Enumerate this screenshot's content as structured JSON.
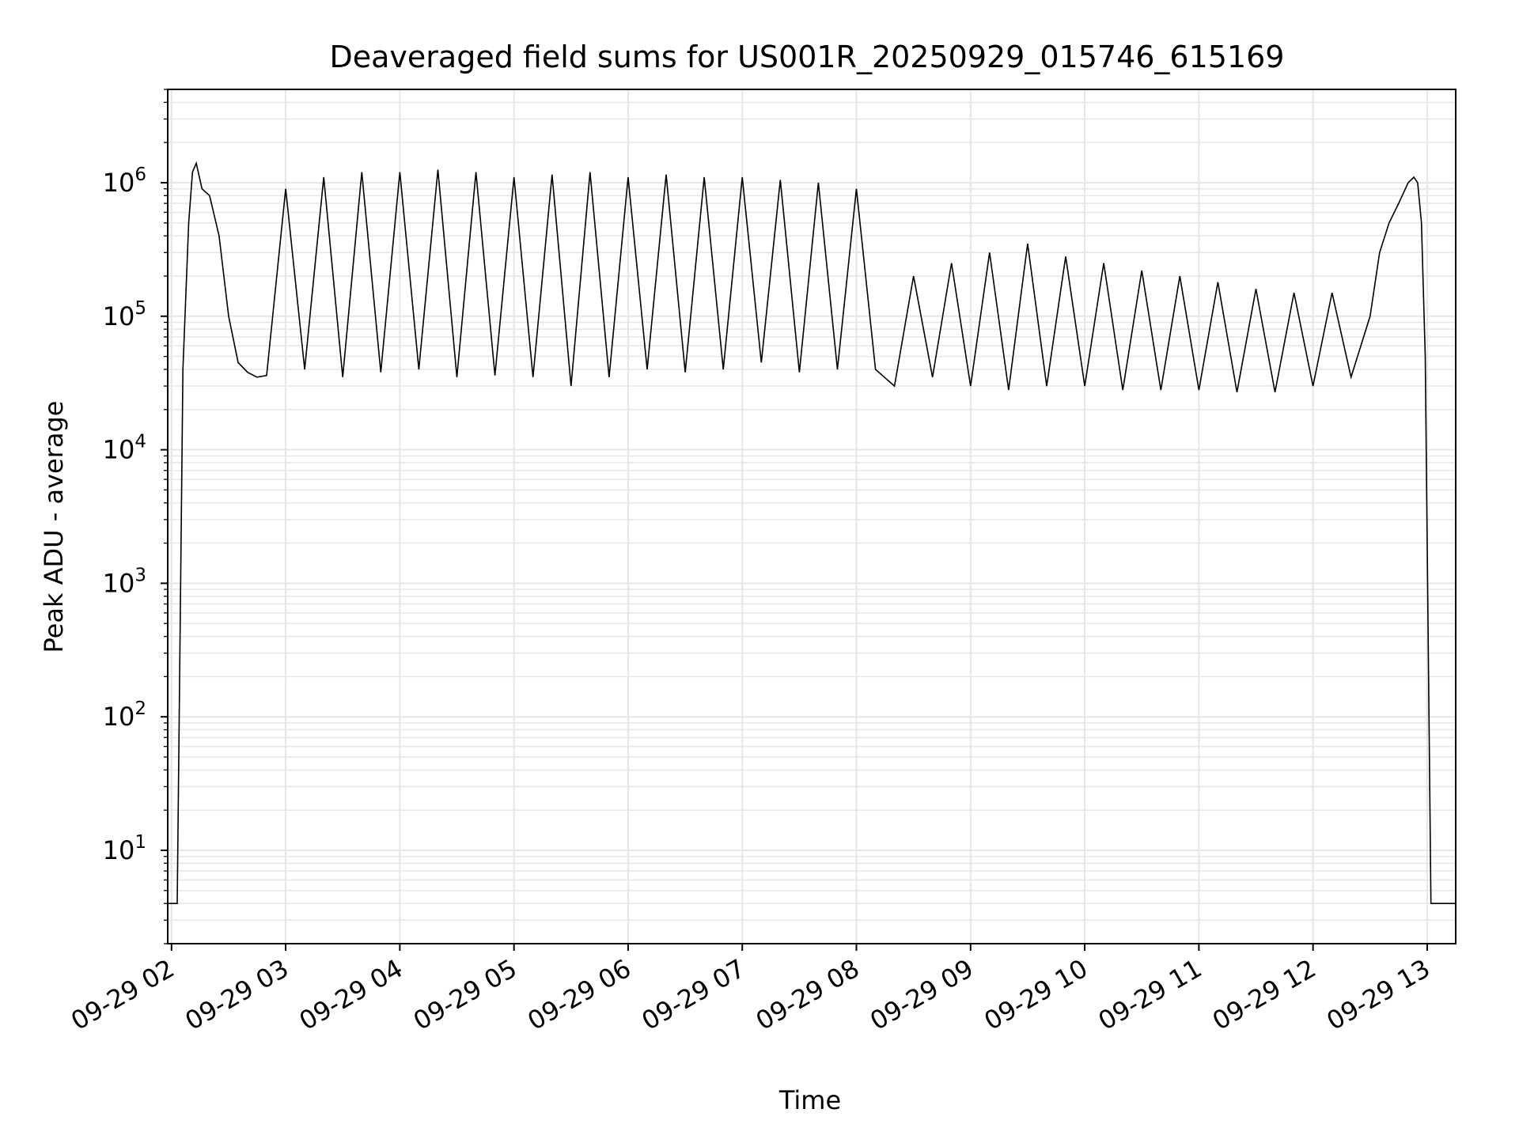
{
  "chart_data": {
    "type": "line",
    "title": "Deaveraged field sums for US001R_20250929_015746_615169",
    "xlabel": "Time",
    "ylabel": "Peak ADU - average",
    "yscale": "log",
    "ylim": [
      2,
      5000000
    ],
    "xlim": [
      "2025-09-29 01:58",
      "2025-09-29 13:15"
    ],
    "grid": true,
    "grid_color": "#e6e6e6",
    "line_color": "#000000",
    "x_ticks": [
      {
        "value": "2025-09-29 02:00",
        "label": "09-29 02"
      },
      {
        "value": "2025-09-29 03:00",
        "label": "09-29 03"
      },
      {
        "value": "2025-09-29 04:00",
        "label": "09-29 04"
      },
      {
        "value": "2025-09-29 05:00",
        "label": "09-29 05"
      },
      {
        "value": "2025-09-29 06:00",
        "label": "09-29 06"
      },
      {
        "value": "2025-09-29 07:00",
        "label": "09-29 07"
      },
      {
        "value": "2025-09-29 08:00",
        "label": "09-29 08"
      },
      {
        "value": "2025-09-29 09:00",
        "label": "09-29 09"
      },
      {
        "value": "2025-09-29 10:00",
        "label": "09-29 10"
      },
      {
        "value": "2025-09-29 11:00",
        "label": "09-29 11"
      },
      {
        "value": "2025-09-29 12:00",
        "label": "09-29 12"
      },
      {
        "value": "2025-09-29 13:00",
        "label": "09-29 13"
      }
    ],
    "y_ticks": [
      {
        "value": 10,
        "base": "10",
        "exp": "1"
      },
      {
        "value": 100,
        "base": "10",
        "exp": "2"
      },
      {
        "value": 1000,
        "base": "10",
        "exp": "3"
      },
      {
        "value": 10000,
        "base": "10",
        "exp": "4"
      },
      {
        "value": 100000,
        "base": "10",
        "exp": "5"
      },
      {
        "value": 1000000,
        "base": "10",
        "exp": "6"
      }
    ],
    "series": [
      {
        "x": [
          "2025-09-29 01:58",
          "2025-09-29 02:03",
          "2025-09-29 02:06",
          "2025-09-29 02:09",
          "2025-09-29 02:11",
          "2025-09-29 02:13",
          "2025-09-29 02:16",
          "2025-09-29 02:20",
          "2025-09-29 02:25",
          "2025-09-29 02:30",
          "2025-09-29 02:35",
          "2025-09-29 02:40",
          "2025-09-29 02:45",
          "2025-09-29 02:50",
          "2025-09-29 03:00",
          "2025-09-29 03:10",
          "2025-09-29 03:20",
          "2025-09-29 03:30",
          "2025-09-29 03:40",
          "2025-09-29 03:50",
          "2025-09-29 04:00",
          "2025-09-29 04:10",
          "2025-09-29 04:20",
          "2025-09-29 04:30",
          "2025-09-29 04:40",
          "2025-09-29 04:50",
          "2025-09-29 05:00",
          "2025-09-29 05:10",
          "2025-09-29 05:20",
          "2025-09-29 05:30",
          "2025-09-29 05:40",
          "2025-09-29 05:50",
          "2025-09-29 06:00",
          "2025-09-29 06:10",
          "2025-09-29 06:20",
          "2025-09-29 06:30",
          "2025-09-29 06:40",
          "2025-09-29 06:50",
          "2025-09-29 07:00",
          "2025-09-29 07:10",
          "2025-09-29 07:20",
          "2025-09-29 07:30",
          "2025-09-29 07:40",
          "2025-09-29 07:50",
          "2025-09-29 08:00",
          "2025-09-29 08:10",
          "2025-09-29 08:20",
          "2025-09-29 08:30",
          "2025-09-29 08:40",
          "2025-09-29 08:50",
          "2025-09-29 09:00",
          "2025-09-29 09:10",
          "2025-09-29 09:20",
          "2025-09-29 09:30",
          "2025-09-29 09:40",
          "2025-09-29 09:50",
          "2025-09-29 10:00",
          "2025-09-29 10:10",
          "2025-09-29 10:20",
          "2025-09-29 10:30",
          "2025-09-29 10:40",
          "2025-09-29 10:50",
          "2025-09-29 11:00",
          "2025-09-29 11:10",
          "2025-09-29 11:20",
          "2025-09-29 11:30",
          "2025-09-29 11:40",
          "2025-09-29 11:50",
          "2025-09-29 12:00",
          "2025-09-29 12:10",
          "2025-09-29 12:20",
          "2025-09-29 12:30",
          "2025-09-29 12:35",
          "2025-09-29 12:40",
          "2025-09-29 12:45",
          "2025-09-29 12:50",
          "2025-09-29 12:53",
          "2025-09-29 12:55",
          "2025-09-29 12:57",
          "2025-09-29 12:59",
          "2025-09-29 13:02",
          "2025-09-29 13:05",
          "2025-09-29 13:10",
          "2025-09-29 13:15"
        ],
        "y": [
          4,
          4,
          40000,
          500000,
          1200000,
          1400000,
          900000,
          800000,
          400000,
          100000,
          45000,
          38000,
          35000,
          36000,
          900000,
          40000,
          1100000,
          35000,
          1200000,
          38000,
          1200000,
          40000,
          1250000,
          35000,
          1200000,
          36000,
          1100000,
          35000,
          1150000,
          30000,
          1200000,
          35000,
          1100000,
          40000,
          1150000,
          38000,
          1100000,
          40000,
          1100000,
          45000,
          1050000,
          38000,
          1000000,
          40000,
          900000,
          40000,
          30000,
          200000,
          35000,
          250000,
          30000,
          300000,
          28000,
          350000,
          30000,
          280000,
          30000,
          250000,
          28000,
          220000,
          28000,
          200000,
          28000,
          180000,
          27000,
          160000,
          27000,
          150000,
          30000,
          150000,
          35000,
          100000,
          300000,
          500000,
          700000,
          1000000,
          1100000,
          1000000,
          500000,
          50000,
          4,
          4,
          4,
          4
        ]
      }
    ]
  }
}
